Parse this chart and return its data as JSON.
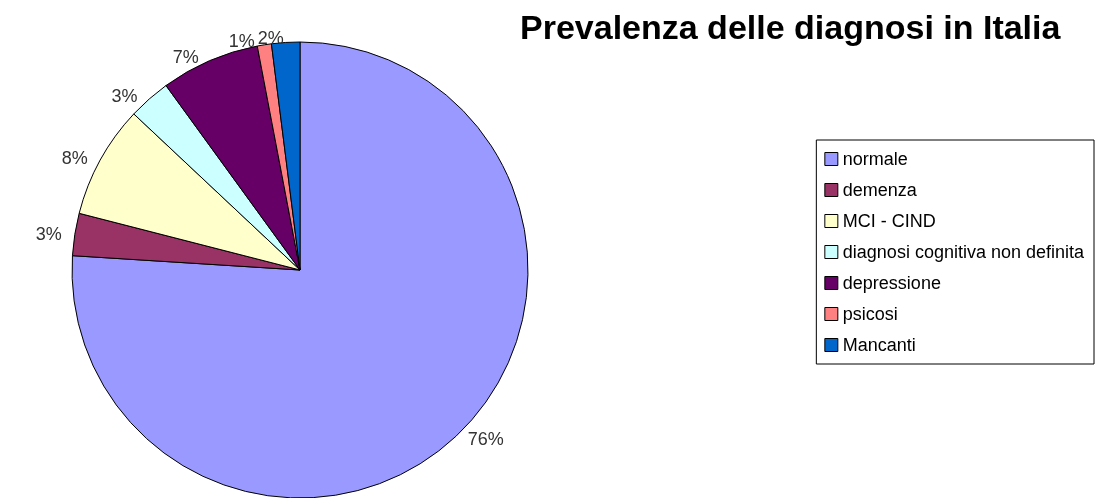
{
  "chart_data": {
    "type": "pie",
    "title": "Prevalenza delle diagnosi in Italia",
    "categories": [
      "normale",
      "demenza",
      "MCI - CIND",
      "diagnosi cognitiva non definita",
      "depressione",
      "psicosi",
      "Mancanti"
    ],
    "values": [
      76,
      3,
      8,
      3,
      7,
      1,
      2
    ],
    "value_labels": [
      "76%",
      "3%",
      "8%",
      "3%",
      "7%",
      "1%",
      "2%"
    ],
    "colors": [
      "#9999ff",
      "#993366",
      "#ffffcc",
      "#ccffff",
      "#660066",
      "#ff8080",
      "#0066cc"
    ],
    "legend": "right"
  }
}
